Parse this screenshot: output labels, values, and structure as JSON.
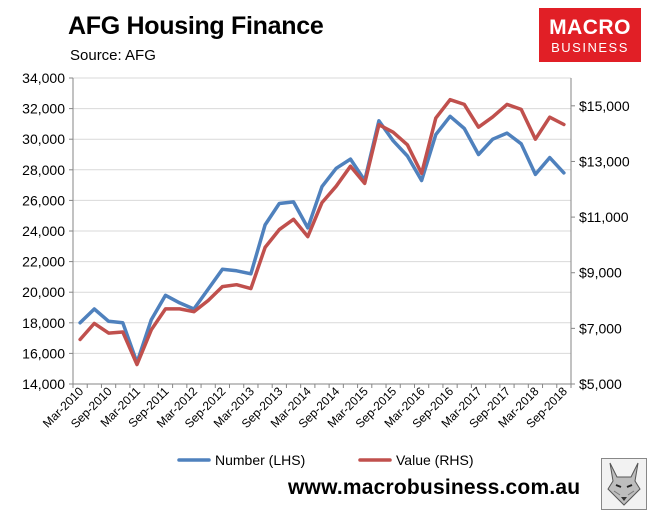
{
  "header": {
    "title": "AFG Housing Finance",
    "subtitle": "Source: AFG"
  },
  "logo": {
    "line1": "MACRO",
    "line2": "BUSINESS",
    "bg_color": "#e11f26"
  },
  "footer": {
    "url": "www.macrobusiness.com.au",
    "mascot_icon": "fox-portrait-icon"
  },
  "chart_data": {
    "type": "line",
    "title": "AFG Housing Finance",
    "categories": [
      "Mar-2010",
      "Jun-2010",
      "Sep-2010",
      "Dec-2010",
      "Mar-2011",
      "Jun-2011",
      "Sep-2011",
      "Dec-2011",
      "Mar-2012",
      "Jun-2012",
      "Sep-2012",
      "Dec-2012",
      "Mar-2013",
      "Jun-2013",
      "Sep-2013",
      "Dec-2013",
      "Mar-2014",
      "Jun-2014",
      "Sep-2014",
      "Dec-2014",
      "Mar-2015",
      "Jun-2015",
      "Sep-2015",
      "Dec-2015",
      "Mar-2016",
      "Jun-2016",
      "Sep-2016",
      "Dec-2016",
      "Mar-2017",
      "Jun-2017",
      "Sep-2017",
      "Dec-2017",
      "Mar-2018",
      "Jun-2018",
      "Sep-2018"
    ],
    "x_tick_labels": [
      "Mar-2010",
      "Sep-2010",
      "Mar-2011",
      "Sep-2011",
      "Mar-2012",
      "Sep-2012",
      "Mar-2013",
      "Sep-2013",
      "Mar-2014",
      "Sep-2014",
      "Mar-2015",
      "Sep-2015",
      "Mar-2016",
      "Sep-2016",
      "Mar-2017",
      "Sep-2017",
      "Mar-2018",
      "Sep-2018"
    ],
    "series": [
      {
        "name": "Number (LHS)",
        "axis": "left",
        "color": "#4f81bd",
        "values": [
          18000,
          18900,
          18100,
          18000,
          15400,
          18200,
          19800,
          19300,
          18900,
          20200,
          21500,
          21400,
          21200,
          24400,
          25800,
          25900,
          24200,
          26900,
          28100,
          28700,
          27300,
          31200,
          29900,
          28900,
          27300,
          30300,
          31500,
          30700,
          29000,
          30000,
          30400,
          29700,
          27700,
          28800,
          27800
        ]
      },
      {
        "name": "Value (RHS)",
        "axis": "right",
        "color": "#c0504d",
        "values": [
          6600,
          7180,
          6830,
          6870,
          5700,
          6950,
          7700,
          7700,
          7600,
          8000,
          8500,
          8570,
          8430,
          9910,
          10550,
          10920,
          10300,
          11520,
          12110,
          12830,
          12210,
          14320,
          14050,
          13600,
          12570,
          14560,
          15220,
          15050,
          14230,
          14600,
          15050,
          14870,
          13800,
          14590,
          14330
        ]
      }
    ],
    "y_left": {
      "min": 14000,
      "max": 34000,
      "step": 2000,
      "tick_labels": [
        "14,000",
        "16,000",
        "18,000",
        "20,000",
        "22,000",
        "24,000",
        "26,000",
        "28,000",
        "30,000",
        "32,000",
        "34,000"
      ]
    },
    "y_right": {
      "min": 5000,
      "max": 16000,
      "tick_values": [
        5000,
        7000,
        9000,
        11000,
        13000,
        15000
      ],
      "tick_labels": [
        "$5,000",
        "$7,000",
        "$9,000",
        "$11,000",
        "$13,000",
        "$15,000"
      ]
    },
    "grid": true,
    "legend_position": "bottom"
  }
}
